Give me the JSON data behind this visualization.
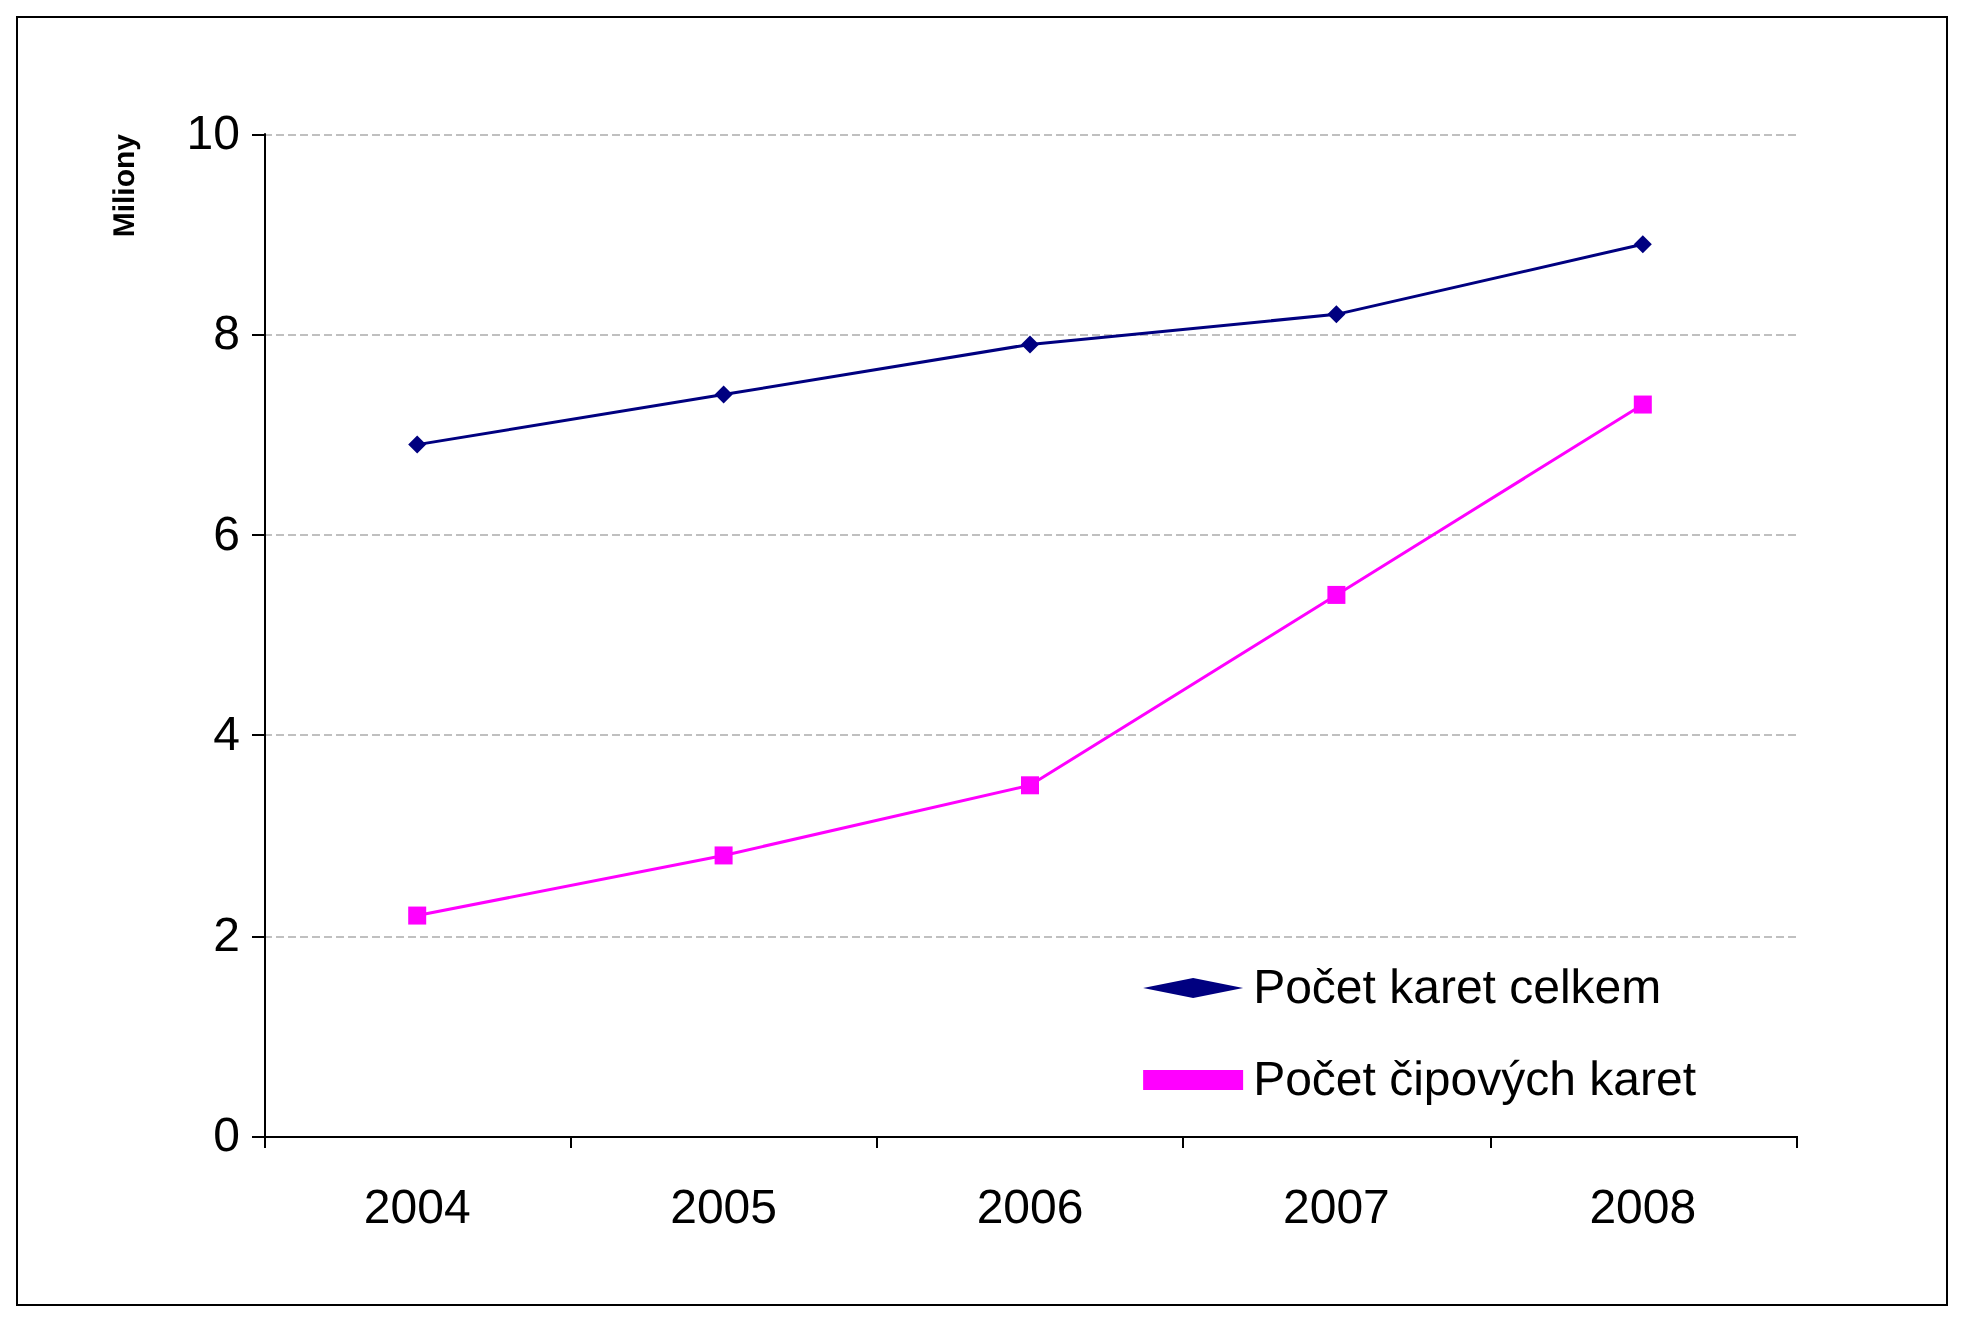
{
  "chart_data": {
    "type": "line",
    "ylabel": "Miliony",
    "categories": [
      "2004",
      "2005",
      "2006",
      "2007",
      "2008"
    ],
    "series": [
      {
        "name": "Počet karet celkem",
        "color": "#000080",
        "marker": "diamond",
        "values": [
          6.9,
          7.4,
          7.9,
          8.2,
          8.9
        ]
      },
      {
        "name": "Počet čipových karet",
        "color": "#ff00ff",
        "marker": "square",
        "values": [
          2.2,
          2.8,
          3.5,
          5.4,
          7.3
        ]
      }
    ],
    "ylim": [
      0,
      10
    ],
    "yticks": [
      0,
      2,
      4,
      6,
      8,
      10
    ],
    "grid": "y",
    "legend": "bottom right"
  }
}
